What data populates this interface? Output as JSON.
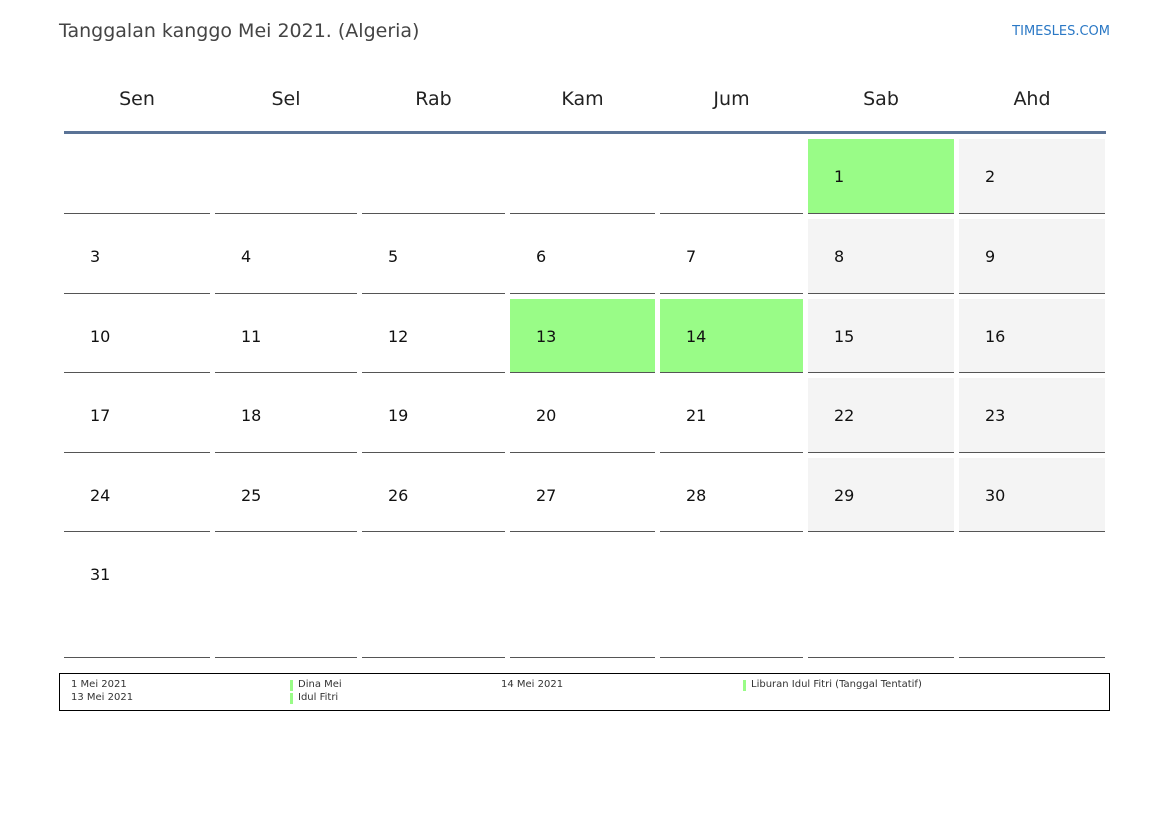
{
  "header": {
    "title": "Tanggalan kanggo Mei 2021. (Algeria)",
    "brand": "TIMESLES.COM"
  },
  "weekdays": [
    "Sen",
    "Sel",
    "Rab",
    "Kam",
    "Jum",
    "Sab",
    "Ahd"
  ],
  "calendar": {
    "rows": [
      [
        "",
        "",
        "",
        "",
        "",
        "1",
        "2"
      ],
      [
        "3",
        "4",
        "5",
        "6",
        "7",
        "8",
        "9"
      ],
      [
        "10",
        "11",
        "12",
        "13",
        "14",
        "15",
        "16"
      ],
      [
        "17",
        "18",
        "19",
        "20",
        "21",
        "22",
        "23"
      ],
      [
        "24",
        "25",
        "26",
        "27",
        "28",
        "29",
        "30"
      ],
      [
        "31",
        "",
        "",
        "",
        "",
        "",
        ""
      ]
    ],
    "holidays": [
      "1",
      "13",
      "14"
    ],
    "holiday_color": "#99fc87",
    "weekend_color": "#f4f4f4",
    "header_rule_color": "#5a7396"
  },
  "legend": {
    "entries": [
      {
        "date": "1 Mei 2021",
        "name": "Dina Mei"
      },
      {
        "date": "13 Mei 2021",
        "name": "Idul Fitri"
      },
      {
        "date": "14 Mei 2021",
        "name": "Liburan Idul Fitri (Tanggal Tentatif)"
      }
    ]
  }
}
